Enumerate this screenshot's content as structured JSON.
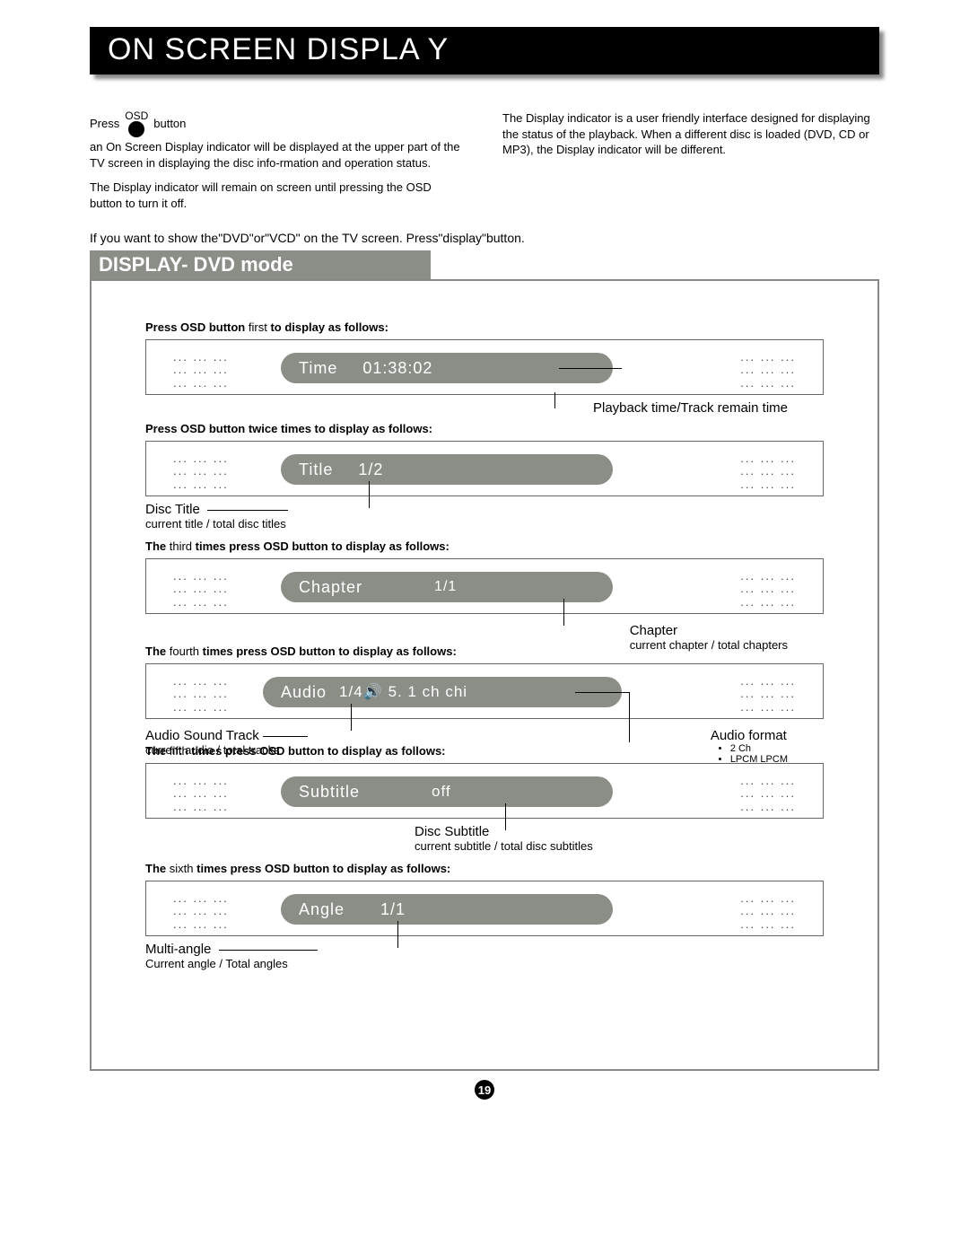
{
  "header": {
    "title": "ON SCREEN DISPLA Y"
  },
  "intro": {
    "press_label_left": "Press",
    "osd_label": "OSD",
    "press_label_right": "button",
    "left_para1": "an On Screen Display indicator will be displayed at the upper part of the TV screen in displaying the disc info-rmation and operation status.",
    "left_para2": "The Display indicator will remain on screen until pressing the OSD button to turn it off.",
    "right_para1": "The Display indicator is a user friendly interface designed for displaying the status of the playback. When a different disc is loaded (DVD, CD or MP3), the Display indicator will be different.",
    "screen_note": "If you want to show the\"DVD\"or\"VCD\" on the TV screen. Press\"display\"button."
  },
  "section_heading": "DISPLAY- DVD mode",
  "blocks": {
    "time": {
      "press_line_pre": "Press OSD button",
      "press_line_mid": "first",
      "press_line_post": "to display as follows:",
      "pill_label": "Time",
      "pill_value": "01:38:02",
      "callout": "Playback time/Track remain time"
    },
    "title": {
      "press_line_pre": "Press OSD button twice times to display as follows:",
      "pill_label": "Title",
      "pill_value": "1/2",
      "callout_title": "Disc Title",
      "callout_sub": "current title / total disc titles"
    },
    "chapter": {
      "press_line_pre": "The",
      "press_line_ord": "third",
      "press_line_post": "times press OSD button to display as follows:",
      "pill_label": "Chapter",
      "pill_value": "1/1",
      "callout_title": "Chapter",
      "callout_sub": "current chapter / total chapters"
    },
    "audio": {
      "press_line_pre": "The",
      "press_line_ord": "fourth",
      "press_line_post": "times press OSD button to display as follows:",
      "pill_label": "Audio",
      "pill_value": "1/4🔊 5. 1 ch chi",
      "left_callout_title": "Audio Sound Track",
      "left_callout_sub": "current audio / total tracks",
      "right_callout_title": "Audio format",
      "bullet1": "2 Ch",
      "bullet2": "LPCM LPCM"
    },
    "subtitle": {
      "press_line_pre": "The",
      "press_line_ord": "fifth",
      "press_line_post": "times press OSD button to display as follows:",
      "pill_label": "Subtitle",
      "pill_value": "off",
      "callout_title": "Disc Subtitle",
      "callout_sub": "current subtitle / total disc subtitles"
    },
    "angle": {
      "press_line_pre": "The",
      "press_line_ord": "sixth",
      "press_line_post": "times press OSD button to display as follows:",
      "pill_label": "Angle",
      "pill_value": "1/1",
      "callout_title": "Multi-angle",
      "callout_sub": "Current angle / Total angles"
    }
  },
  "page_number": "19",
  "dots_text": "... ... ...\n... ... ...\n... ... ..."
}
